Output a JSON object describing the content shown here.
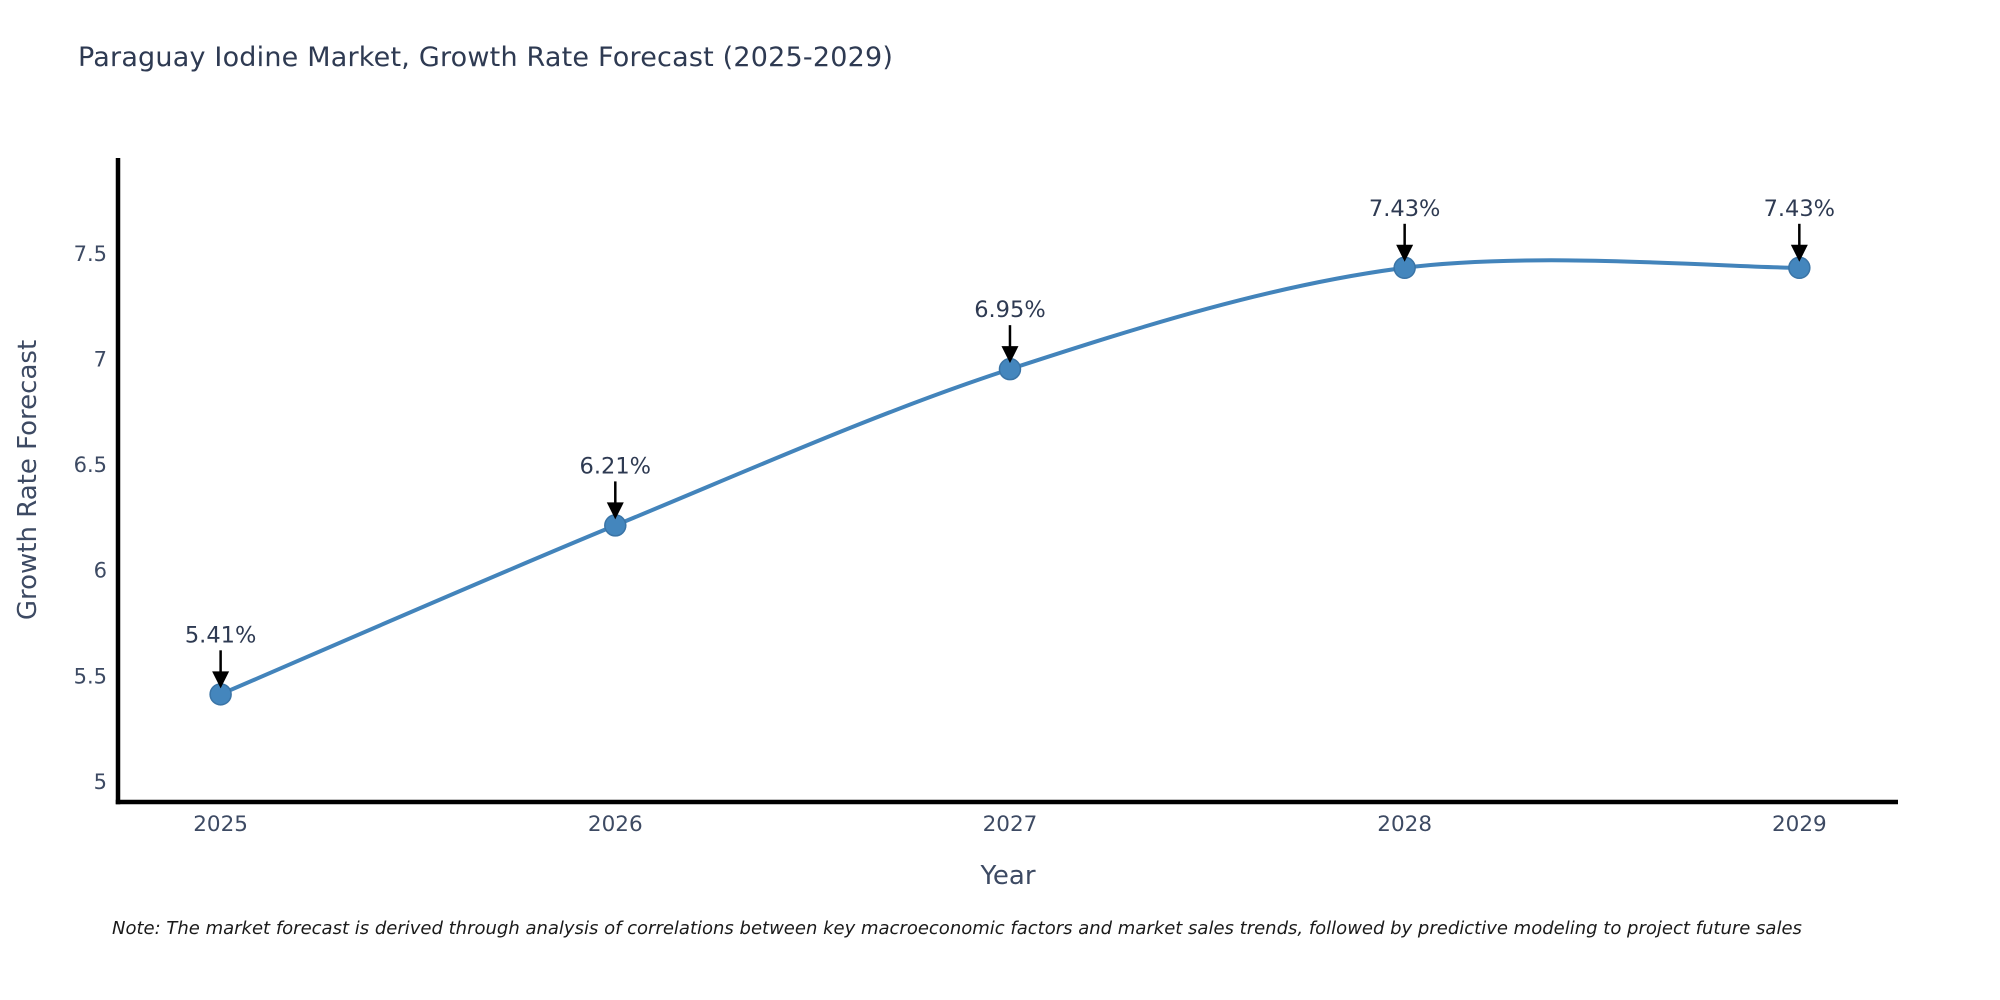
{
  "chart_data": {
    "type": "line",
    "title": "Paraguay Iodine Market, Growth Rate Forecast (2025-2029)",
    "xlabel": "Year",
    "ylabel": "Growth Rate Forecast",
    "categories": [
      2025,
      2026,
      2027,
      2028,
      2029
    ],
    "series": [
      {
        "name": "Growth Rate Forecast",
        "values": [
          5.41,
          6.21,
          6.95,
          7.43,
          7.43
        ],
        "point_labels": [
          "5.41%",
          "6.21%",
          "6.95%",
          "7.43%",
          "7.43%"
        ]
      }
    ],
    "y_ticks": [
      5,
      5.5,
      6,
      6.5,
      7,
      7.5
    ],
    "y_tick_labels": [
      "5",
      "5.5",
      "6",
      "6.5",
      "7",
      "7.5"
    ],
    "x_tick_labels": [
      "2025",
      "2026",
      "2027",
      "2028",
      "2029"
    ],
    "ylim": [
      4.9,
      7.95
    ],
    "xlim": [
      2024.74,
      2029.25
    ],
    "grid": false,
    "legend": false,
    "line_shape": "spline",
    "colors": {
      "line": "#4384bb",
      "marker_fill": "#4486bd",
      "marker_edge": "#3a74a6",
      "axis": "#000000",
      "title_text": "#2e3a52",
      "tick_text": "#3d4a63",
      "annotation_text": "#2e3a52",
      "annotation_arrow": "#000000"
    }
  },
  "note": "Note: The market forecast is derived through analysis of correlations between key macroeconomic factors and market sales trends, followed by predictive modeling to project future sales"
}
